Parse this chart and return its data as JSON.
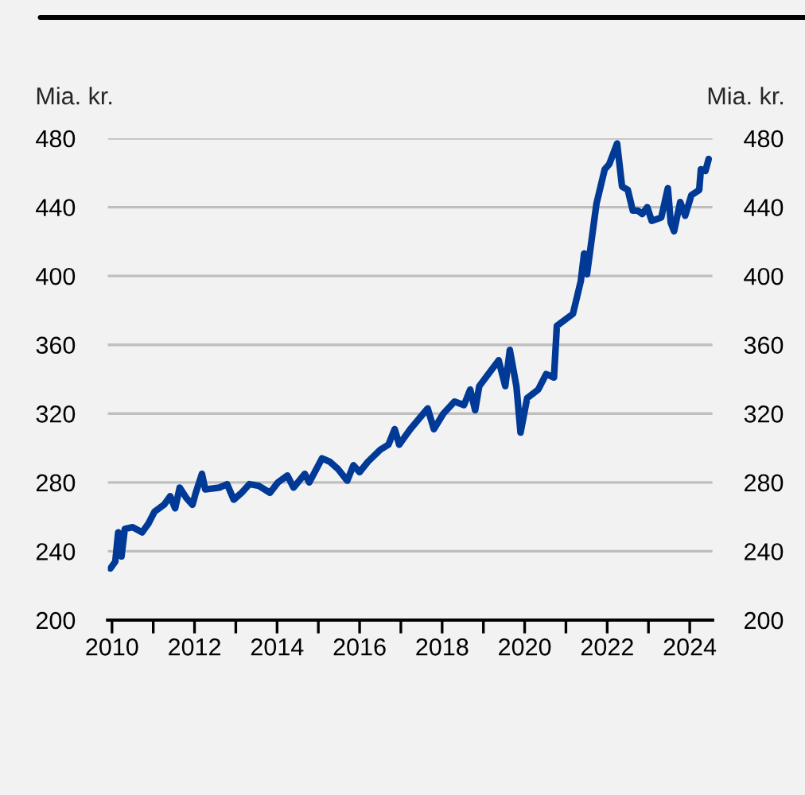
{
  "chart_data": {
    "type": "line",
    "ylabel": "Mia. kr.",
    "y2label": "Mia. kr.",
    "x": [
      2009.96,
      2010.08,
      2010.15,
      2010.23,
      2010.31,
      2010.5,
      2010.73,
      2010.88,
      2011.03,
      2011.26,
      2011.41,
      2011.53,
      2011.64,
      2011.8,
      2011.95,
      2012.03,
      2012.18,
      2012.26,
      2012.6,
      2012.79,
      2012.95,
      2013.14,
      2013.33,
      2013.56,
      2013.83,
      2014.02,
      2014.25,
      2014.4,
      2014.67,
      2014.78,
      2015.09,
      2015.28,
      2015.47,
      2015.7,
      2015.85,
      2016.0,
      2016.2,
      2016.5,
      2016.7,
      2016.85,
      2016.96,
      2017.23,
      2017.65,
      2017.8,
      2018.03,
      2018.3,
      2018.53,
      2018.68,
      2018.8,
      2018.9,
      2019.37,
      2019.53,
      2019.64,
      2019.8,
      2019.9,
      2020.06,
      2020.33,
      2020.52,
      2020.71,
      2020.78,
      2021.17,
      2021.36,
      2021.44,
      2021.51,
      2021.74,
      2021.94,
      2022.05,
      2022.24,
      2022.36,
      2022.5,
      2022.62,
      2022.74,
      2022.85,
      2022.97,
      2023.08,
      2023.31,
      2023.47,
      2023.54,
      2023.62,
      2023.77,
      2023.89,
      2024.04,
      2024.23,
      2024.27,
      2024.38,
      2024.46
    ],
    "series": [
      {
        "color": "#003a96",
        "values": [
          230,
          234,
          251,
          237,
          253,
          254,
          251,
          256,
          263,
          267,
          272,
          265,
          277,
          271,
          267,
          274,
          285,
          276,
          277,
          279,
          270,
          274,
          279,
          278,
          274,
          280,
          284,
          277,
          285,
          280,
          294,
          292,
          288,
          281,
          290,
          286,
          292,
          299,
          302,
          311,
          302,
          311,
          323,
          311,
          320,
          327,
          325,
          334,
          322,
          336,
          351,
          336,
          357,
          336,
          309,
          329,
          334,
          343,
          341,
          371,
          378,
          397,
          413,
          401,
          442,
          462,
          465,
          477,
          452,
          450,
          438,
          438,
          436,
          440,
          432,
          434,
          451,
          431,
          426,
          443,
          435,
          447,
          450,
          462,
          461,
          468
        ]
      }
    ],
    "xlim": [
      2009.9,
      2024.55
    ],
    "xticks": [
      2010,
      {
        "value": 2011,
        "label": null
      },
      2012,
      {
        "value": 2013,
        "label": null
      },
      2014,
      {
        "value": 2015,
        "label": null
      },
      2016,
      {
        "value": 2017,
        "label": null
      },
      2018,
      {
        "value": 2019,
        "label": null
      },
      2020,
      {
        "value": 2021,
        "label": null
      },
      2022,
      {
        "value": 2023,
        "label": null
      },
      2024
    ],
    "ylim": [
      200,
      480
    ],
    "yticks": [
      200,
      240,
      280,
      320,
      360,
      400,
      440,
      480
    ],
    "y2lim": [
      200,
      480
    ],
    "y2ticks": [
      200,
      240,
      280,
      320,
      360,
      400,
      440,
      480
    ],
    "grid": "y",
    "line_style": "solid"
  }
}
